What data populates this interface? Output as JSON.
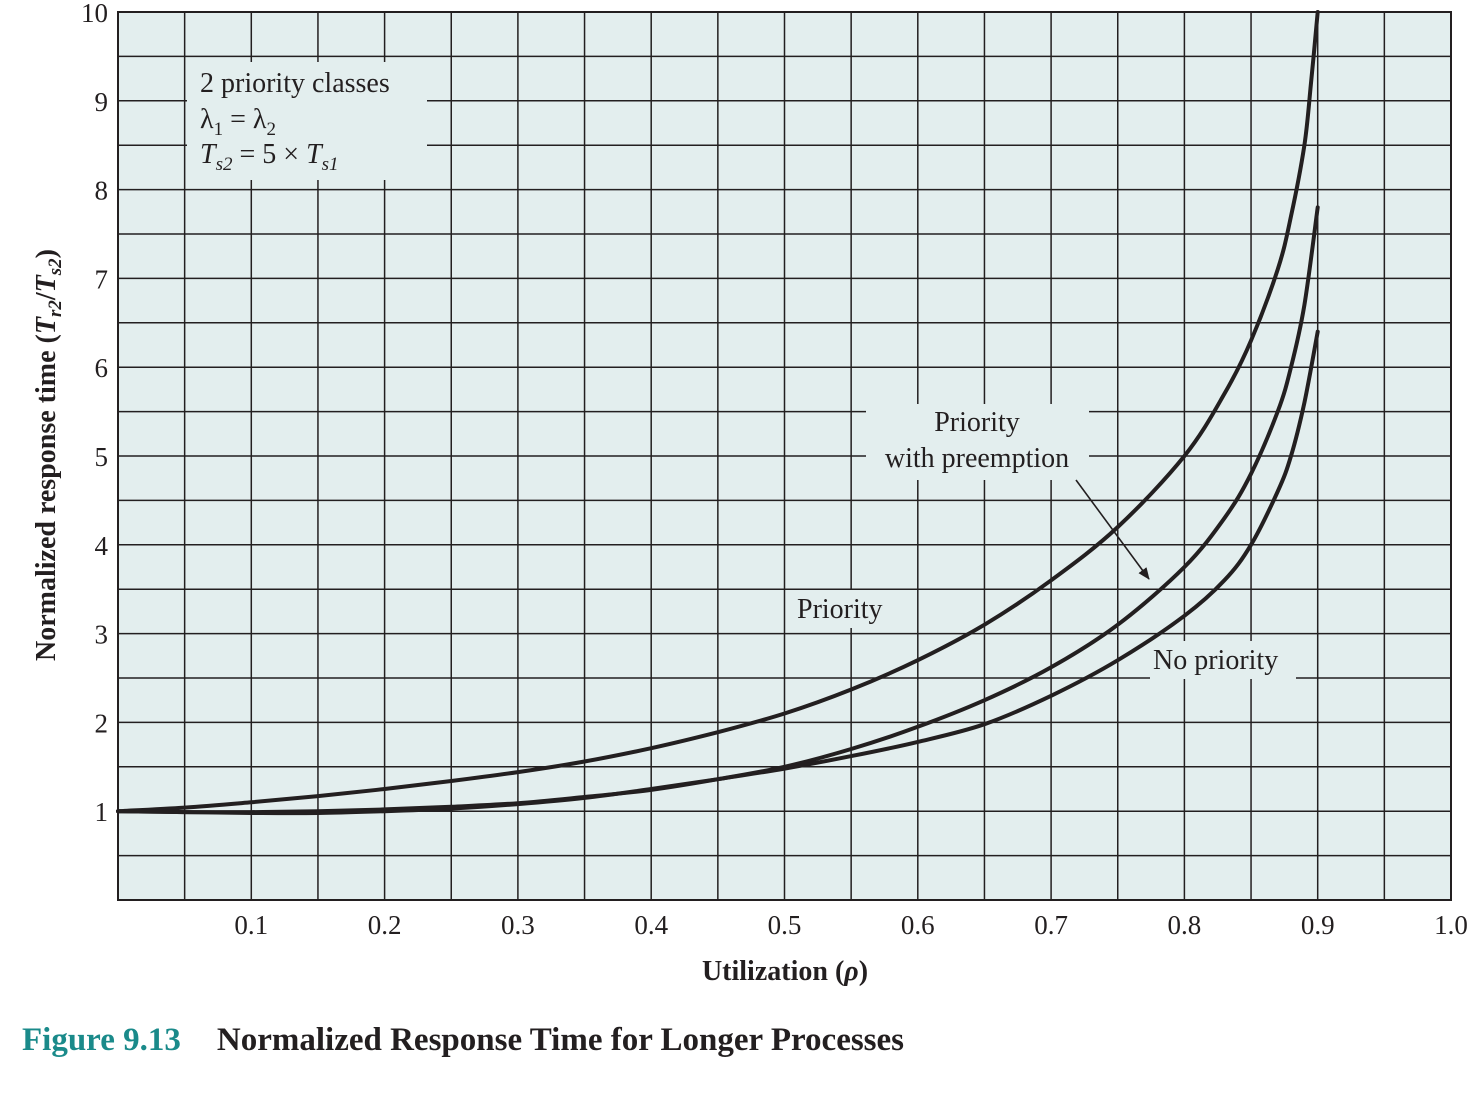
{
  "chart_data": {
    "type": "line",
    "x_ticks": [
      0.1,
      0.2,
      0.3,
      0.4,
      0.5,
      0.6,
      0.7,
      0.8,
      0.9,
      1.0
    ],
    "x_tick_labels": [
      "0.1",
      "0.2",
      "0.3",
      "0.4",
      "0.5",
      "0.6",
      "0.7",
      "0.8",
      "0.9",
      "1.0"
    ],
    "y_ticks": [
      1,
      2,
      3,
      4,
      5,
      6,
      7,
      8,
      9,
      10
    ],
    "y_tick_labels": [
      "1",
      "2",
      "3",
      "4",
      "5",
      "6",
      "7",
      "8",
      "9",
      "10"
    ],
    "xlim": [
      0,
      1.0
    ],
    "ylim": [
      0,
      10
    ],
    "grid": true,
    "grid_step_x": 0.05,
    "grid_step_y": 0.5,
    "background_color": "#e3eeee",
    "line_color": "#231f20",
    "xlabel": {
      "main": "Utilization (",
      "symbol": "ρ",
      "end": ")"
    },
    "ylabel": {
      "main": "Normalized response time (",
      "t1": "T",
      "s1": "r2",
      "slash": "/",
      "t2": "T",
      "s2": "s2",
      "end": ")"
    },
    "conditions_box": {
      "line1": "2 priority classes",
      "line2": {
        "a": "λ",
        "a_sub": "1",
        "eq": " = ",
        "b": "λ",
        "b_sub": "2"
      },
      "line3": {
        "a": "T",
        "a_sub": "s2",
        "eq": " = 5 × ",
        "b": "T",
        "b_sub": "s1"
      }
    },
    "series": [
      {
        "name": "Priority",
        "x": [
          0,
          0.05,
          0.1,
          0.15,
          0.2,
          0.25,
          0.3,
          0.35,
          0.4,
          0.45,
          0.5,
          0.55,
          0.6,
          0.65,
          0.7,
          0.75,
          0.8,
          0.83,
          0.85,
          0.87,
          0.88,
          0.89,
          0.895,
          0.9
        ],
        "y": [
          1.0,
          1.04,
          1.1,
          1.17,
          1.25,
          1.34,
          1.44,
          1.56,
          1.71,
          1.89,
          2.1,
          2.37,
          2.7,
          3.1,
          3.6,
          4.2,
          5.0,
          5.7,
          6.3,
          7.1,
          7.7,
          8.5,
          9.2,
          10.0
        ]
      },
      {
        "name": "Priority with preemption",
        "x": [
          0,
          0.05,
          0.1,
          0.15,
          0.2,
          0.25,
          0.3,
          0.35,
          0.4,
          0.45,
          0.5,
          0.55,
          0.6,
          0.65,
          0.7,
          0.75,
          0.8,
          0.83,
          0.85,
          0.87,
          0.88,
          0.89,
          0.9
        ],
        "y": [
          1.0,
          0.99,
          0.99,
          1.0,
          1.02,
          1.05,
          1.09,
          1.16,
          1.24,
          1.36,
          1.5,
          1.7,
          1.95,
          2.25,
          2.62,
          3.1,
          3.75,
          4.3,
          4.8,
          5.5,
          6.0,
          6.7,
          7.8
        ]
      },
      {
        "name": "No priority",
        "x": [
          0,
          0.05,
          0.1,
          0.15,
          0.2,
          0.25,
          0.3,
          0.35,
          0.4,
          0.45,
          0.5,
          0.55,
          0.6,
          0.65,
          0.7,
          0.75,
          0.8,
          0.83,
          0.85,
          0.87,
          0.88,
          0.89,
          0.9
        ],
        "y": [
          1.0,
          0.99,
          0.98,
          0.98,
          1.0,
          1.03,
          1.08,
          1.15,
          1.25,
          1.36,
          1.48,
          1.62,
          1.78,
          1.98,
          2.3,
          2.7,
          3.2,
          3.6,
          4.0,
          4.6,
          5.0,
          5.6,
          6.4
        ]
      }
    ],
    "annotations": {
      "priority": "Priority",
      "preemption_line1": "Priority",
      "preemption_line2": "with preemption",
      "no_priority": "No priority"
    }
  },
  "caption": {
    "figure_number": "Figure 9.13",
    "figure_title": "Normalized Response Time for Longer Processes"
  }
}
